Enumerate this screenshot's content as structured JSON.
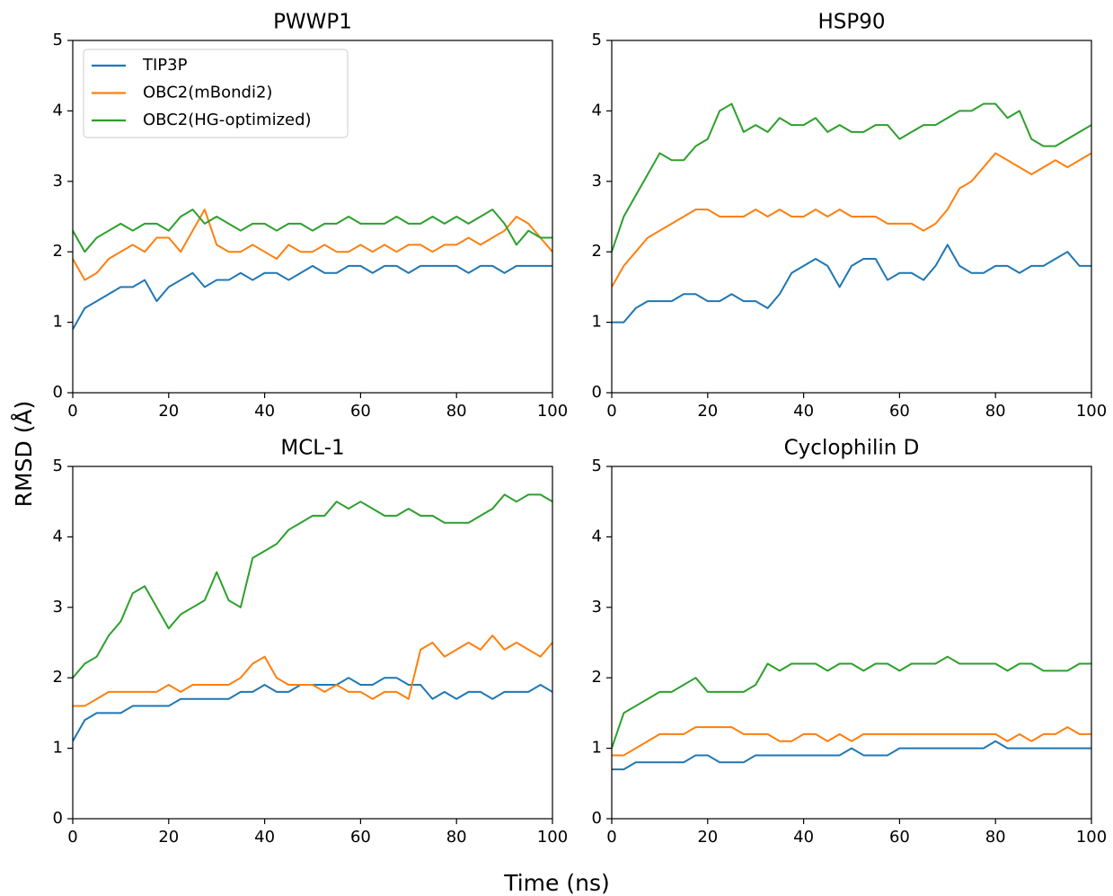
{
  "xlabel": "Time (ns)",
  "ylabel": "RMSD (Å)",
  "chart_data": [
    {
      "type": "line",
      "title": "PWWP1",
      "legend": "upper left",
      "x": [
        0,
        2.5,
        5,
        7.5,
        10,
        12.5,
        15,
        17.5,
        20,
        22.5,
        25,
        27.5,
        30,
        32.5,
        35,
        37.5,
        40,
        42.5,
        45,
        47.5,
        50,
        52.5,
        55,
        57.5,
        60,
        62.5,
        65,
        67.5,
        70,
        72.5,
        75,
        77.5,
        80,
        82.5,
        85,
        87.5,
        90,
        92.5,
        95,
        97.5,
        100
      ],
      "xlim": [
        0,
        100
      ],
      "ylim": [
        0,
        5
      ],
      "xticks": [
        0,
        20,
        40,
        60,
        80,
        100
      ],
      "yticks": [
        0,
        1,
        2,
        3,
        4,
        5
      ],
      "series": [
        {
          "name": "TIP3P",
          "color": "#1f77b4",
          "values": [
            0.9,
            1.2,
            1.3,
            1.4,
            1.5,
            1.5,
            1.6,
            1.3,
            1.5,
            1.6,
            1.7,
            1.5,
            1.6,
            1.6,
            1.7,
            1.6,
            1.7,
            1.7,
            1.6,
            1.7,
            1.8,
            1.7,
            1.7,
            1.8,
            1.8,
            1.7,
            1.8,
            1.8,
            1.7,
            1.8,
            1.8,
            1.8,
            1.8,
            1.7,
            1.8,
            1.8,
            1.7,
            1.8,
            1.8,
            1.8,
            1.8
          ]
        },
        {
          "name": "OBC2(mBondi2)",
          "color": "#ff7f0e",
          "values": [
            1.9,
            1.6,
            1.7,
            1.9,
            2.0,
            2.1,
            2.0,
            2.2,
            2.2,
            2.0,
            2.3,
            2.6,
            2.1,
            2.0,
            2.0,
            2.1,
            2.0,
            1.9,
            2.1,
            2.0,
            2.0,
            2.1,
            2.0,
            2.0,
            2.1,
            2.0,
            2.1,
            2.0,
            2.1,
            2.1,
            2.0,
            2.1,
            2.1,
            2.2,
            2.1,
            2.2,
            2.3,
            2.5,
            2.4,
            2.2,
            2.0
          ]
        },
        {
          "name": "OBC2(HG-optimized)",
          "color": "#2ca02c",
          "values": [
            2.3,
            2.0,
            2.2,
            2.3,
            2.4,
            2.3,
            2.4,
            2.4,
            2.3,
            2.5,
            2.6,
            2.4,
            2.5,
            2.4,
            2.3,
            2.4,
            2.4,
            2.3,
            2.4,
            2.4,
            2.3,
            2.4,
            2.4,
            2.5,
            2.4,
            2.4,
            2.4,
            2.5,
            2.4,
            2.4,
            2.5,
            2.4,
            2.5,
            2.4,
            2.5,
            2.6,
            2.4,
            2.1,
            2.3,
            2.2,
            2.2
          ]
        }
      ]
    },
    {
      "type": "line",
      "title": "HSP90",
      "x": [
        0,
        2.5,
        5,
        7.5,
        10,
        12.5,
        15,
        17.5,
        20,
        22.5,
        25,
        27.5,
        30,
        32.5,
        35,
        37.5,
        40,
        42.5,
        45,
        47.5,
        50,
        52.5,
        55,
        57.5,
        60,
        62.5,
        65,
        67.5,
        70,
        72.5,
        75,
        77.5,
        80,
        82.5,
        85,
        87.5,
        90,
        92.5,
        95,
        97.5,
        100
      ],
      "xlim": [
        0,
        100
      ],
      "ylim": [
        0,
        5
      ],
      "xticks": [
        0,
        20,
        40,
        60,
        80,
        100
      ],
      "yticks": [
        0,
        1,
        2,
        3,
        4,
        5
      ],
      "series": [
        {
          "color": "#1f77b4",
          "values": [
            1.0,
            1.0,
            1.2,
            1.3,
            1.3,
            1.3,
            1.4,
            1.4,
            1.3,
            1.3,
            1.4,
            1.3,
            1.3,
            1.2,
            1.4,
            1.7,
            1.8,
            1.9,
            1.8,
            1.5,
            1.8,
            1.9,
            1.9,
            1.6,
            1.7,
            1.7,
            1.6,
            1.8,
            2.1,
            1.8,
            1.7,
            1.7,
            1.8,
            1.8,
            1.7,
            1.8,
            1.8,
            1.9,
            2.0,
            1.8,
            1.8
          ]
        },
        {
          "color": "#ff7f0e",
          "values": [
            1.5,
            1.8,
            2.0,
            2.2,
            2.3,
            2.4,
            2.5,
            2.6,
            2.6,
            2.5,
            2.5,
            2.5,
            2.6,
            2.5,
            2.6,
            2.5,
            2.5,
            2.6,
            2.5,
            2.6,
            2.5,
            2.5,
            2.5,
            2.4,
            2.4,
            2.4,
            2.3,
            2.4,
            2.6,
            2.9,
            3.0,
            3.2,
            3.4,
            3.3,
            3.2,
            3.1,
            3.2,
            3.3,
            3.2,
            3.3,
            3.4
          ]
        },
        {
          "color": "#2ca02c",
          "values": [
            2.0,
            2.5,
            2.8,
            3.1,
            3.4,
            3.3,
            3.3,
            3.5,
            3.6,
            4.0,
            4.1,
            3.7,
            3.8,
            3.7,
            3.9,
            3.8,
            3.8,
            3.9,
            3.7,
            3.8,
            3.7,
            3.7,
            3.8,
            3.8,
            3.6,
            3.7,
            3.8,
            3.8,
            3.9,
            4.0,
            4.0,
            4.1,
            4.1,
            3.9,
            4.0,
            3.6,
            3.5,
            3.5,
            3.6,
            3.7,
            3.8
          ]
        }
      ]
    },
    {
      "type": "line",
      "title": "MCL-1",
      "x": [
        0,
        2.5,
        5,
        7.5,
        10,
        12.5,
        15,
        17.5,
        20,
        22.5,
        25,
        27.5,
        30,
        32.5,
        35,
        37.5,
        40,
        42.5,
        45,
        47.5,
        50,
        52.5,
        55,
        57.5,
        60,
        62.5,
        65,
        67.5,
        70,
        72.5,
        75,
        77.5,
        80,
        82.5,
        85,
        87.5,
        90,
        92.5,
        95,
        97.5,
        100
      ],
      "xlim": [
        0,
        100
      ],
      "ylim": [
        0,
        5
      ],
      "xticks": [
        0,
        20,
        40,
        60,
        80,
        100
      ],
      "yticks": [
        0,
        1,
        2,
        3,
        4,
        5
      ],
      "series": [
        {
          "color": "#1f77b4",
          "values": [
            1.1,
            1.4,
            1.5,
            1.5,
            1.5,
            1.6,
            1.6,
            1.6,
            1.6,
            1.7,
            1.7,
            1.7,
            1.7,
            1.7,
            1.8,
            1.8,
            1.9,
            1.8,
            1.8,
            1.9,
            1.9,
            1.9,
            1.9,
            2.0,
            1.9,
            1.9,
            2.0,
            2.0,
            1.9,
            1.9,
            1.7,
            1.8,
            1.7,
            1.8,
            1.8,
            1.7,
            1.8,
            1.8,
            1.8,
            1.9,
            1.8
          ]
        },
        {
          "color": "#ff7f0e",
          "values": [
            1.6,
            1.6,
            1.7,
            1.8,
            1.8,
            1.8,
            1.8,
            1.8,
            1.9,
            1.8,
            1.9,
            1.9,
            1.9,
            1.9,
            2.0,
            2.2,
            2.3,
            2.0,
            1.9,
            1.9,
            1.9,
            1.8,
            1.9,
            1.8,
            1.8,
            1.7,
            1.8,
            1.8,
            1.7,
            2.4,
            2.5,
            2.3,
            2.4,
            2.5,
            2.4,
            2.6,
            2.4,
            2.5,
            2.4,
            2.3,
            2.5
          ]
        },
        {
          "color": "#2ca02c",
          "values": [
            2.0,
            2.2,
            2.3,
            2.6,
            2.8,
            3.2,
            3.3,
            3.0,
            2.7,
            2.9,
            3.0,
            3.1,
            3.5,
            3.1,
            3.0,
            3.7,
            3.8,
            3.9,
            4.1,
            4.2,
            4.3,
            4.3,
            4.5,
            4.4,
            4.5,
            4.4,
            4.3,
            4.3,
            4.4,
            4.3,
            4.3,
            4.2,
            4.2,
            4.2,
            4.3,
            4.4,
            4.6,
            4.5,
            4.6,
            4.6,
            4.5
          ]
        }
      ]
    },
    {
      "type": "line",
      "title": "Cyclophilin D",
      "x": [
        0,
        2.5,
        5,
        7.5,
        10,
        12.5,
        15,
        17.5,
        20,
        22.5,
        25,
        27.5,
        30,
        32.5,
        35,
        37.5,
        40,
        42.5,
        45,
        47.5,
        50,
        52.5,
        55,
        57.5,
        60,
        62.5,
        65,
        67.5,
        70,
        72.5,
        75,
        77.5,
        80,
        82.5,
        85,
        87.5,
        90,
        92.5,
        95,
        97.5,
        100
      ],
      "xlim": [
        0,
        100
      ],
      "ylim": [
        0,
        5
      ],
      "xticks": [
        0,
        20,
        40,
        60,
        80,
        100
      ],
      "yticks": [
        0,
        1,
        2,
        3,
        4,
        5
      ],
      "series": [
        {
          "color": "#1f77b4",
          "values": [
            0.7,
            0.7,
            0.8,
            0.8,
            0.8,
            0.8,
            0.8,
            0.9,
            0.9,
            0.8,
            0.8,
            0.8,
            0.9,
            0.9,
            0.9,
            0.9,
            0.9,
            0.9,
            0.9,
            0.9,
            1.0,
            0.9,
            0.9,
            0.9,
            1.0,
            1.0,
            1.0,
            1.0,
            1.0,
            1.0,
            1.0,
            1.0,
            1.1,
            1.0,
            1.0,
            1.0,
            1.0,
            1.0,
            1.0,
            1.0,
            1.0
          ]
        },
        {
          "color": "#ff7f0e",
          "values": [
            0.9,
            0.9,
            1.0,
            1.1,
            1.2,
            1.2,
            1.2,
            1.3,
            1.3,
            1.3,
            1.3,
            1.2,
            1.2,
            1.2,
            1.1,
            1.1,
            1.2,
            1.2,
            1.1,
            1.2,
            1.1,
            1.2,
            1.2,
            1.2,
            1.2,
            1.2,
            1.2,
            1.2,
            1.2,
            1.2,
            1.2,
            1.2,
            1.2,
            1.1,
            1.2,
            1.1,
            1.2,
            1.2,
            1.3,
            1.2,
            1.2
          ]
        },
        {
          "color": "#2ca02c",
          "values": [
            1.0,
            1.5,
            1.6,
            1.7,
            1.8,
            1.8,
            1.9,
            2.0,
            1.8,
            1.8,
            1.8,
            1.8,
            1.9,
            2.2,
            2.1,
            2.2,
            2.2,
            2.2,
            2.1,
            2.2,
            2.2,
            2.1,
            2.2,
            2.2,
            2.1,
            2.2,
            2.2,
            2.2,
            2.3,
            2.2,
            2.2,
            2.2,
            2.2,
            2.1,
            2.2,
            2.2,
            2.1,
            2.1,
            2.1,
            2.2,
            2.2
          ]
        }
      ]
    }
  ]
}
